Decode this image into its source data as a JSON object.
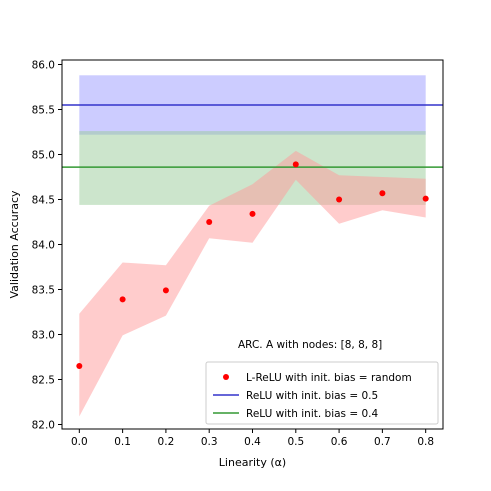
{
  "chart_data": {
    "type": "scatter",
    "title": "",
    "xlabel": "Linearity (α)",
    "ylabel": "Validation Accuracy",
    "xlim": [
      -0.04,
      0.84
    ],
    "ylim": [
      81.95,
      86.05
    ],
    "xticks": [
      0.0,
      0.1,
      0.2,
      0.3,
      0.4,
      0.5,
      0.6,
      0.7,
      0.8
    ],
    "xtick_labels": [
      "0.0",
      "0.1",
      "0.2",
      "0.3",
      "0.4",
      "0.5",
      "0.6",
      "0.7",
      "0.8"
    ],
    "yticks": [
      82.0,
      82.5,
      83.0,
      83.5,
      84.0,
      84.5,
      85.0,
      85.5,
      86.0
    ],
    "ytick_labels": [
      "82.0",
      "82.5",
      "83.0",
      "83.5",
      "84.0",
      "84.5",
      "85.0",
      "85.5",
      "86.0"
    ],
    "grid": false,
    "legend_position": "lower-right",
    "annotation": "ARC. A with nodes: [8, 8, 8]",
    "series": [
      {
        "name": "L-ReLU with init. bias = random",
        "kind": "points_with_band",
        "color": "#ff0000",
        "band_color": "#ff9999",
        "x": [
          0.0,
          0.1,
          0.2,
          0.3,
          0.4,
          0.5,
          0.6,
          0.7,
          0.8
        ],
        "y": [
          82.65,
          83.39,
          83.49,
          84.25,
          84.34,
          84.89,
          84.5,
          84.57,
          84.51
        ],
        "band_upper": [
          83.23,
          83.8,
          83.77,
          84.43,
          84.67,
          85.04,
          84.77,
          84.75,
          84.73
        ],
        "band_lower": [
          82.09,
          82.99,
          83.21,
          84.07,
          84.02,
          84.72,
          84.23,
          84.38,
          84.3
        ]
      },
      {
        "name": "ReLU with init. bias = 0.5",
        "kind": "hline_with_band",
        "color": "#3333cc",
        "band_color": "#9999ff",
        "x_range": [
          0.0,
          0.8
        ],
        "y": 85.55,
        "band_upper": 85.88,
        "band_lower": 85.22
      },
      {
        "name": "ReLU with init. bias = 0.4",
        "kind": "hline_with_band",
        "color": "#339933",
        "band_color": "#99cc99",
        "x_range": [
          0.0,
          0.8
        ],
        "y": 84.86,
        "band_upper": 85.26,
        "band_lower": 84.44
      }
    ]
  }
}
